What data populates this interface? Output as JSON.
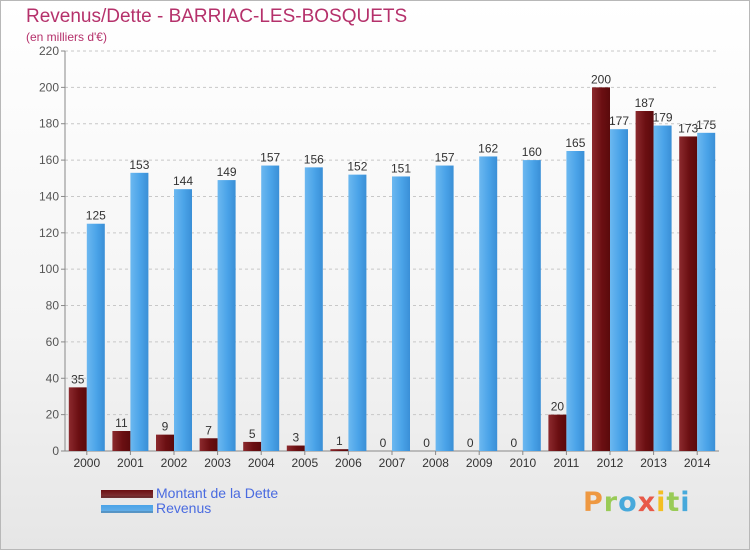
{
  "header": {
    "title": "Revenus/Dette - BARRIAC-LES-BOSQUETS",
    "subtitle": "(en milliers d'€)"
  },
  "legend": {
    "items": [
      {
        "label": "Montant de la Dette",
        "color": "#6b0f12"
      },
      {
        "label": "Revenus",
        "color": "#4aa3e8"
      }
    ]
  },
  "logo": {
    "text": "Proxiti",
    "letter_colors": [
      "#f08a24",
      "#8cc63e",
      "#2b9fd9",
      "#e8412c",
      "#f5b800",
      "#8cc63e",
      "#2b9fd9"
    ]
  },
  "chart_data": {
    "type": "bar",
    "title": "Revenus/Dette - BARRIAC-LES-BOSQUETS",
    "subtitle": "(en milliers d'€)",
    "categories": [
      "2000",
      "2001",
      "2002",
      "2003",
      "2004",
      "2005",
      "2006",
      "2007",
      "2008",
      "2009",
      "2010",
      "2011",
      "2012",
      "2013",
      "2014"
    ],
    "series": [
      {
        "name": "Montant de la Dette",
        "color": "#6b0f12",
        "values": [
          35,
          11,
          9,
          7,
          5,
          3,
          1,
          0,
          0,
          0,
          0,
          20,
          200,
          187,
          173
        ]
      },
      {
        "name": "Revenus",
        "color": "#4aa3e8",
        "values": [
          125,
          153,
          144,
          149,
          157,
          156,
          152,
          151,
          157,
          162,
          160,
          165,
          177,
          179,
          175
        ]
      }
    ],
    "ylim": [
      0,
      220
    ],
    "yticks": [
      0,
      20,
      40,
      60,
      80,
      100,
      120,
      140,
      160,
      180,
      200,
      220
    ],
    "grid": true,
    "legend": "bottom-left"
  }
}
